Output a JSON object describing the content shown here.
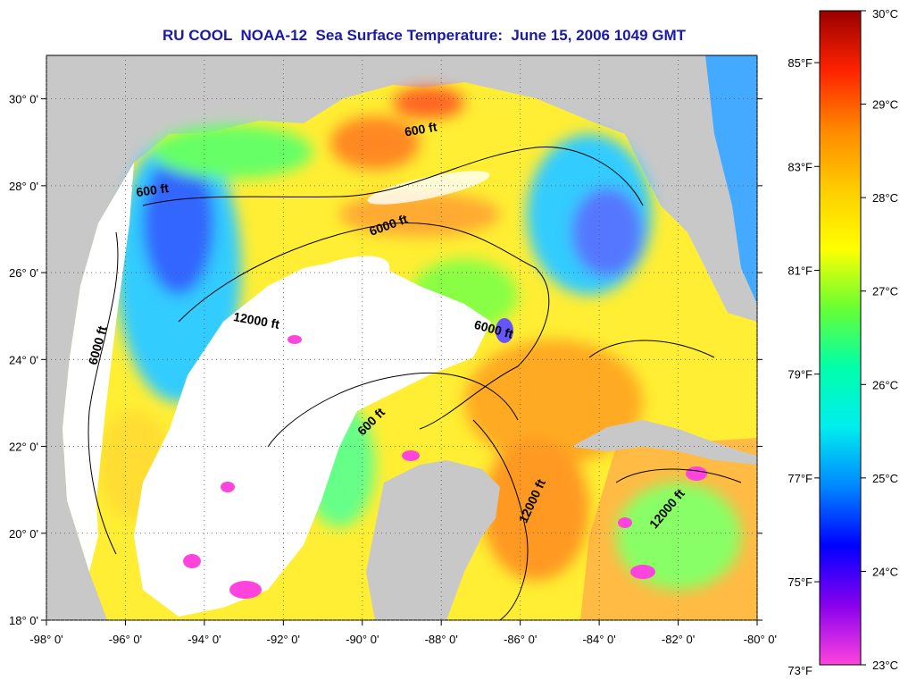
{
  "title": "RU COOL  NOAA-12  Sea Surface Temperature:  June 15, 2006 1049 GMT",
  "lat_labels": [
    "30° 0'",
    "28° 0'",
    "26° 0'",
    "24° 0'",
    "22° 0'",
    "20° 0'",
    "18° 0'"
  ],
  "lat_values": [
    30,
    28,
    26,
    24,
    22,
    20,
    18
  ],
  "lon_labels": [
    "-98° 0'",
    "-96° 0'",
    "-94° 0'",
    "-92° 0'",
    "-90° 0'",
    "-88° 0'",
    "-86° 0'",
    "-84° 0'",
    "-82° 0'",
    "-80° 0'"
  ],
  "lon_values": [
    -98,
    -96,
    -94,
    -92,
    -90,
    -88,
    -86,
    -84,
    -82,
    -80
  ],
  "map_extent": {
    "lon": [
      -98,
      -80
    ],
    "lat": [
      18,
      31
    ]
  },
  "depth_labels": [
    {
      "text": "600 ft",
      "lon": -88.5,
      "lat": 29.2,
      "angle": -10
    },
    {
      "text": "600 ft",
      "lon": -95.3,
      "lat": 27.8,
      "angle": -8
    },
    {
      "text": "6000 ft",
      "lon": -89.3,
      "lat": 27.0,
      "angle": -20
    },
    {
      "text": "12000 ft",
      "lon": -92.7,
      "lat": 24.8,
      "angle": 10
    },
    {
      "text": "6000 ft",
      "lon": -86.7,
      "lat": 24.6,
      "angle": 15
    },
    {
      "text": "6000 ft",
      "lon": -96.6,
      "lat": 24.3,
      "angle": -75
    },
    {
      "text": "600 ft",
      "lon": -89.7,
      "lat": 22.5,
      "angle": -45
    },
    {
      "text": "12000 ft",
      "lon": -85.6,
      "lat": 20.7,
      "angle": -65
    },
    {
      "text": "12000 ft",
      "lon": -82.2,
      "lat": 20.5,
      "angle": -50
    }
  ],
  "colorbar": {
    "f_labels": [
      "85°F",
      "83°F",
      "81°F",
      "79°F",
      "77°F",
      "75°F",
      "73°F"
    ],
    "f_values": [
      85,
      83,
      81,
      79,
      77,
      75,
      73
    ],
    "c_labels": [
      "30°C",
      "29°C",
      "28°C",
      "27°C",
      "26°C",
      "25°C",
      "24°C",
      "23°C"
    ],
    "c_values": [
      30,
      29,
      28,
      27,
      26,
      25,
      24,
      23
    ],
    "range_c": [
      23,
      30
    ],
    "colors": [
      "#ff44dd",
      "#8800ee",
      "#0000ff",
      "#0088ff",
      "#00eeee",
      "#00ffaa",
      "#66ff33",
      "#ffff00",
      "#ffcc00",
      "#ff8800",
      "#ff2200",
      "#990000"
    ]
  },
  "colors": {
    "land": "#c8c8c8",
    "title": "#1a1aa8",
    "cloud": "#ffffff"
  }
}
